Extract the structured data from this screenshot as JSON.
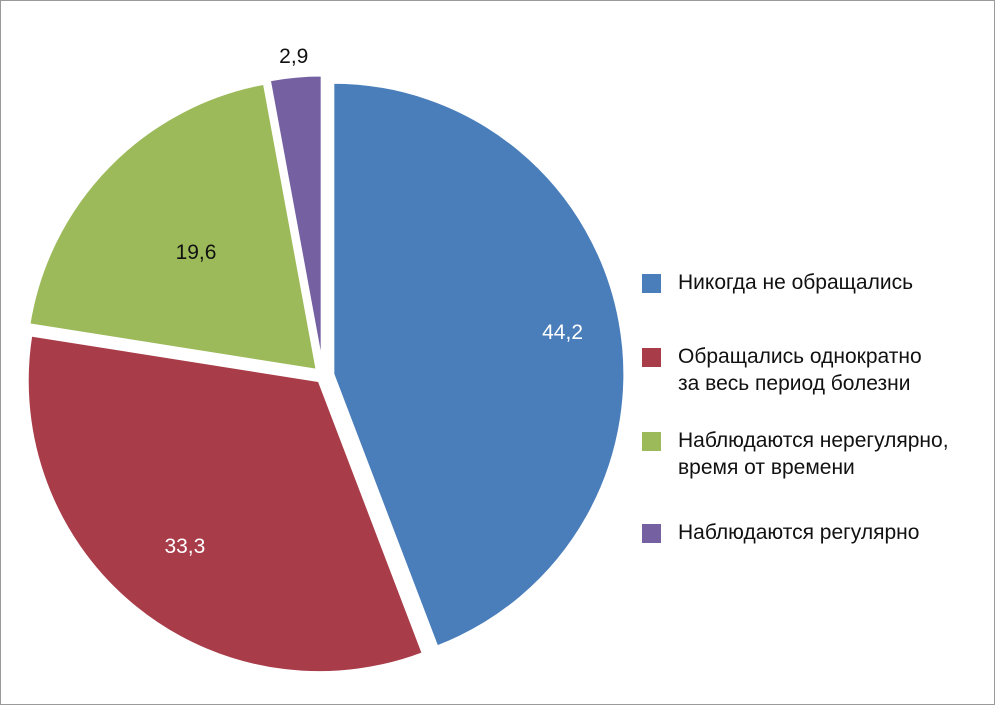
{
  "chart_data": {
    "type": "pie",
    "title": "",
    "slices": [
      {
        "label": "Никогда не обращались",
        "value": 44.2,
        "display": "44,2",
        "color": "#4a7ebb",
        "label_color": "#ffffff"
      },
      {
        "label": "Обращались однократно\nза весь период болезни",
        "value": 33.3,
        "display": "33,3",
        "color": "#a83c48",
        "label_color": "#ffffff"
      },
      {
        "label": "Наблюдаются нерегулярно,\nвремя от времени",
        "value": 19.6,
        "display": "19,6",
        "color": "#9cba59",
        "label_color": "#111111"
      },
      {
        "label": "Наблюдаются регулярно",
        "value": 2.9,
        "display": "2,9",
        "color": "#7560a1",
        "label_color": "#111111"
      }
    ],
    "start_angle": "12 o'clock",
    "direction": "clockwise",
    "exploded": true,
    "legend_position": "right"
  }
}
